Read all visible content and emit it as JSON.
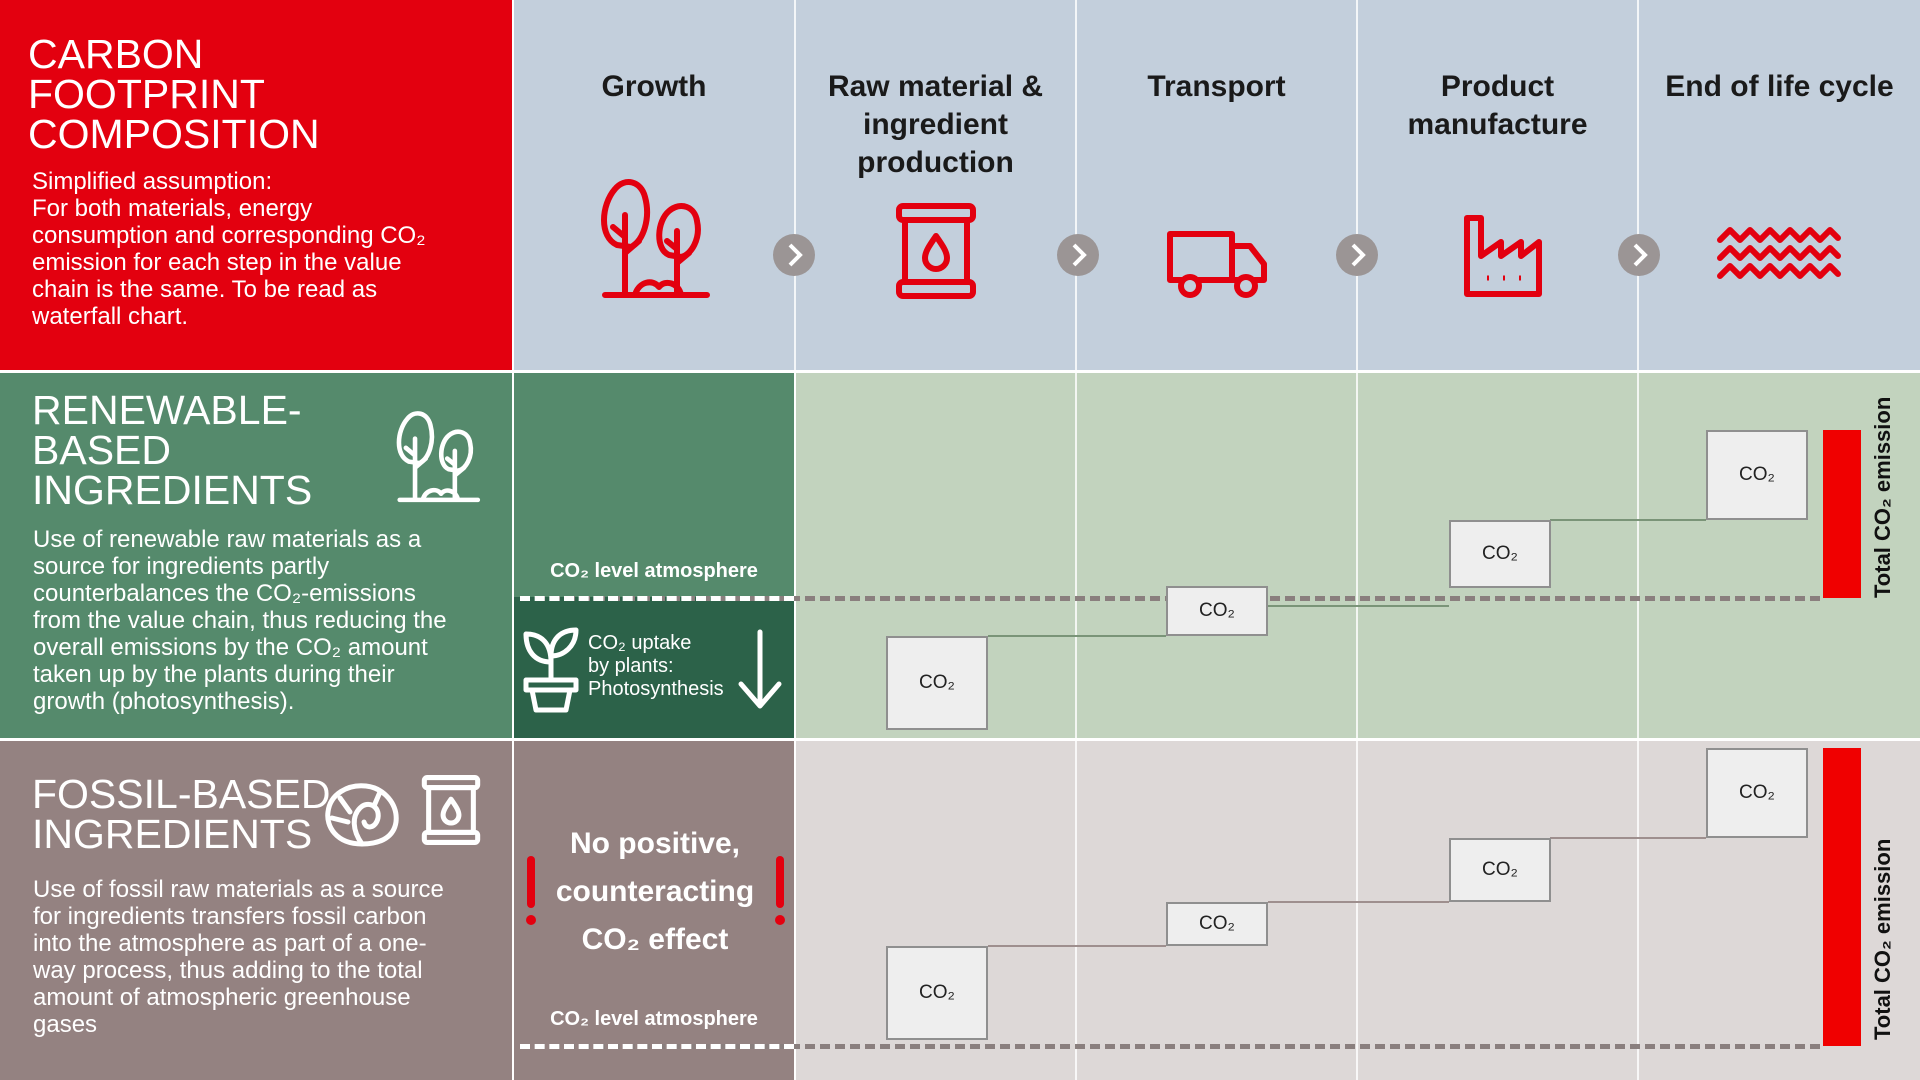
{
  "intro": {
    "title_lines": [
      "CARBON",
      "FOOTPRINT",
      "COMPOSITION"
    ],
    "text_lines": [
      "Simplified assumption:",
      "For both materials, energy",
      "consumption and corresponding CO₂",
      "emission for each step in the value",
      "chain is the same. To be read as",
      "waterfall chart."
    ]
  },
  "stages": [
    {
      "label_lines": [
        "Growth"
      ],
      "icon": "trees-icon"
    },
    {
      "label_lines": [
        "Raw material &",
        "ingredient",
        "production"
      ],
      "icon": "barrel-icon"
    },
    {
      "label_lines": [
        "Transport"
      ],
      "icon": "truck-icon"
    },
    {
      "label_lines": [
        "Product",
        "manufacture"
      ],
      "icon": "factory-icon"
    },
    {
      "label_lines": [
        "End of life cycle"
      ],
      "icon": "waves-icon"
    }
  ],
  "renewable": {
    "title_lines": [
      "RENEWABLE-",
      "BASED",
      "INGREDIENTS"
    ],
    "text_lines": [
      "Use of renewable raw materials as a",
      "source for ingredients partly",
      "counterbalances the CO₂-emissions",
      "from the value chain, thus reducing the",
      "overall emissions by the CO₂ amount",
      "taken up by the plants during their",
      "growth (photosynthesis)."
    ],
    "level_label": "CO₂ level atmosphere",
    "uptake_lines": [
      "CO₂ uptake",
      "by plants:",
      "Photosynthesis"
    ],
    "box_label": "CO₂",
    "total_label": "Total CO₂ emission"
  },
  "fossil": {
    "title_lines": [
      "FOSSIL-BASED",
      "INGREDIENTS"
    ],
    "text_lines": [
      "Use of fossil raw materials as a source",
      "for ingredients transfers fossil carbon",
      "into the atmosphere as part of a one-",
      "way process, thus adding to the total",
      "amount of atmospheric greenhouse",
      "gases"
    ],
    "effect_lines": [
      "No positive,",
      "counteracting",
      "CO₂ effect"
    ],
    "level_label": "CO₂ level atmosphere",
    "box_label": "CO₂",
    "total_label": "Total CO₂ emission"
  },
  "colors": {
    "red": "#e3000f",
    "green": "#558a6c",
    "dark_green": "#2c6249",
    "mauve": "#948281",
    "light_blue": "#c2cfdc",
    "light_green": "#c2d3be",
    "light_gray": "#ddd8d7"
  }
}
